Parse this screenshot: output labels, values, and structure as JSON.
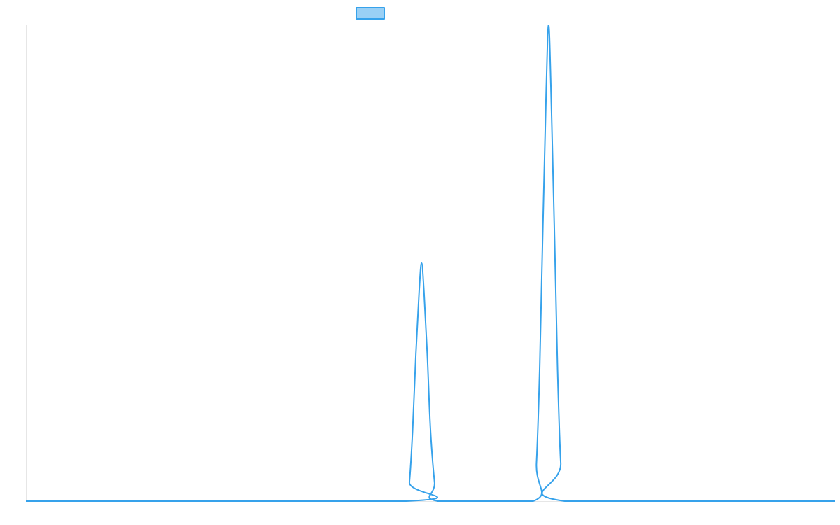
{
  "chart_data": {
    "type": "line",
    "title": "",
    "xlabel": "",
    "ylabel": "",
    "legend": {
      "position": "top",
      "entries": [
        {
          "name": "",
          "color": "#36a2eb",
          "fill": "#9ad0f5"
        }
      ]
    },
    "grid": false,
    "xlim": [
      0,
      1
    ],
    "ylim": [
      0,
      1
    ],
    "series": [
      {
        "name": "",
        "color": "#36a2eb",
        "points": [
          {
            "x": 0.0,
            "y": 0
          },
          {
            "x": 0.47,
            "y": 0
          },
          {
            "x": 0.474,
            "y": 0.04
          },
          {
            "x": 0.478,
            "y": 0.15
          },
          {
            "x": 0.482,
            "y": 0.31
          },
          {
            "x": 0.486,
            "y": 0.44
          },
          {
            "x": 0.489,
            "y": 0.5
          },
          {
            "x": 0.492,
            "y": 0.44
          },
          {
            "x": 0.496,
            "y": 0.31
          },
          {
            "x": 0.5,
            "y": 0.15
          },
          {
            "x": 0.505,
            "y": 0.04
          },
          {
            "x": 0.509,
            "y": 0
          },
          {
            "x": 0.627,
            "y": 0
          },
          {
            "x": 0.631,
            "y": 0.08
          },
          {
            "x": 0.635,
            "y": 0.28
          },
          {
            "x": 0.639,
            "y": 0.58
          },
          {
            "x": 0.643,
            "y": 0.86
          },
          {
            "x": 0.646,
            "y": 1.0
          },
          {
            "x": 0.649,
            "y": 0.86
          },
          {
            "x": 0.653,
            "y": 0.58
          },
          {
            "x": 0.657,
            "y": 0.28
          },
          {
            "x": 0.661,
            "y": 0.08
          },
          {
            "x": 0.666,
            "y": 0
          },
          {
            "x": 1.0,
            "y": 0
          }
        ]
      }
    ]
  }
}
